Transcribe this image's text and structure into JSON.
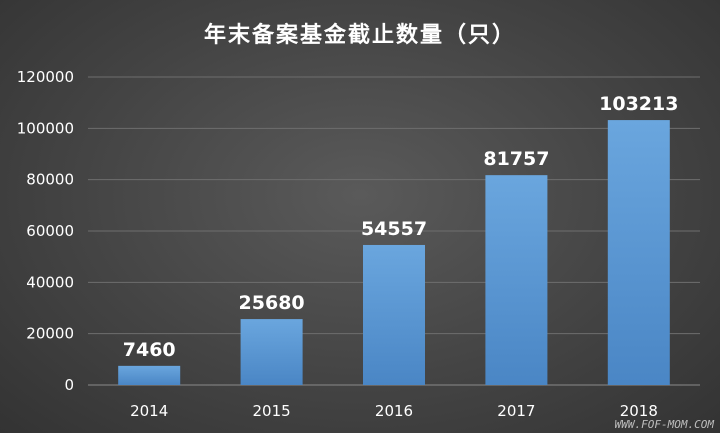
{
  "chart_data": {
    "type": "bar",
    "title": "年末备案基金截止数量（只）",
    "categories": [
      "2014",
      "2015",
      "2016",
      "2017",
      "2018"
    ],
    "values": [
      7460,
      25680,
      54557,
      81757,
      103213
    ],
    "data_labels": [
      "7460",
      "25680",
      "54557",
      "81757",
      "103213"
    ],
    "yticks": [
      "0",
      "20000",
      "40000",
      "60000",
      "80000",
      "100000",
      "120000"
    ],
    "ylim": [
      0,
      120000
    ],
    "xlabel": "",
    "ylabel": "",
    "grid": true,
    "legend": "none",
    "bar_color": "#5b9bd5"
  },
  "watermark": "WWW.FOF-MOM.COM"
}
